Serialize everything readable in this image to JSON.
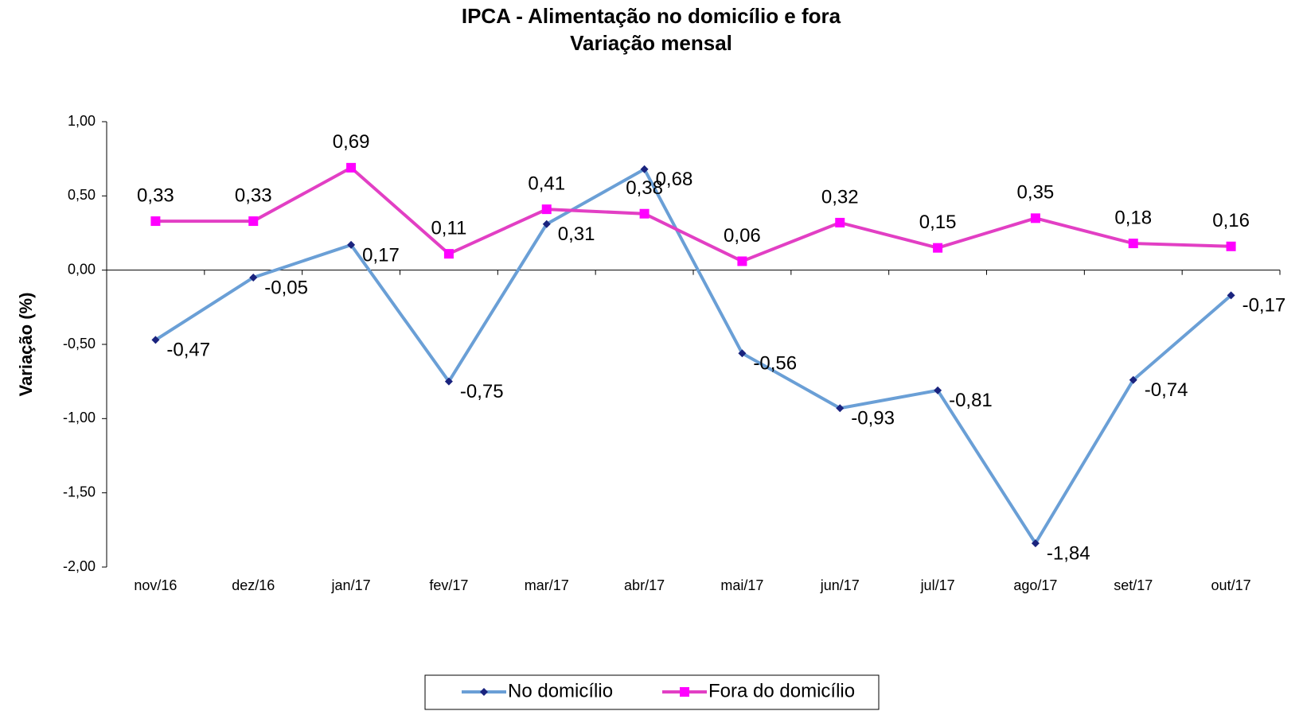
{
  "chart_data": {
    "type": "line",
    "title": "IPCA - Alimentação no domicílio e fora",
    "subtitle": "Variação mensal",
    "y_label": "Variação (%)",
    "categories": [
      "nov/16",
      "dez/16",
      "jan/17",
      "fev/17",
      "mar/17",
      "abr/17",
      "mai/17",
      "jun/17",
      "jul/17",
      "ago/17",
      "set/17",
      "out/17"
    ],
    "series": [
      {
        "name": "No domicílio",
        "color": "#6a9fd6",
        "marker_color": "#1a237e",
        "marker": "diamond",
        "values": [
          -0.47,
          -0.05,
          0.17,
          -0.75,
          0.31,
          0.68,
          -0.56,
          -0.93,
          -0.81,
          -1.84,
          -0.74,
          -0.17
        ],
        "value_labels": [
          "-0,47",
          "-0,05",
          "0,17",
          "-0,75",
          "0,31",
          "0,68",
          "-0,56",
          "-0,93",
          "-0,81",
          "-1,84",
          "-0,74",
          "-0,17"
        ]
      },
      {
        "name": "Fora do domicílio",
        "color": "#e23fc4",
        "marker_color": "#ff00ff",
        "marker": "square",
        "values": [
          0.33,
          0.33,
          0.69,
          0.11,
          0.41,
          0.38,
          0.06,
          0.32,
          0.15,
          0.35,
          0.18,
          0.16
        ],
        "value_labels": [
          "0,33",
          "0,33",
          "0,69",
          "0,11",
          "0,41",
          "0,38",
          "0,06",
          "0,32",
          "0,15",
          "0,35",
          "0,18",
          "0,16"
        ]
      }
    ],
    "ylim": [
      -2,
      1
    ],
    "yticks": [
      {
        "value": -2,
        "label": "-2,00"
      },
      {
        "value": -1.5,
        "label": "-1,50"
      },
      {
        "value": -1,
        "label": "-1,00"
      },
      {
        "value": -0.5,
        "label": "-0,50"
      },
      {
        "value": 0,
        "label": "0,00"
      },
      {
        "value": 0.5,
        "label": "0,50"
      },
      {
        "value": 1,
        "label": "1,00"
      }
    ],
    "grid": false,
    "legend": "bottom"
  }
}
